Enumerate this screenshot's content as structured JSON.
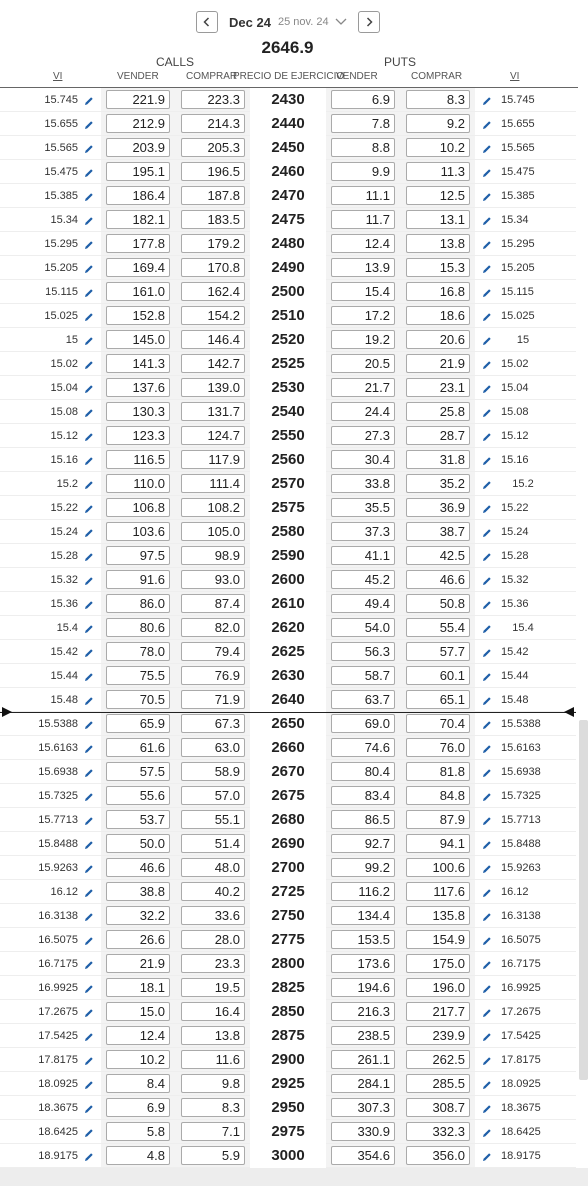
{
  "header": {
    "expiry_label": "Dec 24",
    "expiry_date": "25 nov. 24",
    "underlying_price": "2646.9",
    "calls_label": "CALLS",
    "puts_label": "PUTS",
    "columns": {
      "call_vi": "VI",
      "call_sell": "VENDER",
      "call_buy": "COMPRAR",
      "strike": "PRECIO DE EJERCICIO",
      "put_sell": "VENDER",
      "put_buy": "COMPRAR",
      "put_vi": "VI"
    }
  },
  "colors": {
    "accent": "#1f5fa8",
    "shade": "#f3f3f3",
    "atm_line": "#222222"
  },
  "icons": {
    "prev": "chevron-left-icon",
    "next": "chevron-right-icon",
    "dropdown": "chevron-down-icon",
    "edit": "pencil-icon"
  },
  "atm_after_index": 25,
  "rows": [
    {
      "call_vi": "15.745",
      "call_sell": "221.9",
      "call_buy": "223.3",
      "strike": "2430",
      "put_sell": "6.9",
      "put_buy": "8.3",
      "put_vi": "15.745"
    },
    {
      "call_vi": "15.655",
      "call_sell": "212.9",
      "call_buy": "214.3",
      "strike": "2440",
      "put_sell": "7.8",
      "put_buy": "9.2",
      "put_vi": "15.655"
    },
    {
      "call_vi": "15.565",
      "call_sell": "203.9",
      "call_buy": "205.3",
      "strike": "2450",
      "put_sell": "8.8",
      "put_buy": "10.2",
      "put_vi": "15.565"
    },
    {
      "call_vi": "15.475",
      "call_sell": "195.1",
      "call_buy": "196.5",
      "strike": "2460",
      "put_sell": "9.9",
      "put_buy": "11.3",
      "put_vi": "15.475"
    },
    {
      "call_vi": "15.385",
      "call_sell": "186.4",
      "call_buy": "187.8",
      "strike": "2470",
      "put_sell": "11.1",
      "put_buy": "12.5",
      "put_vi": "15.385"
    },
    {
      "call_vi": "15.34",
      "call_sell": "182.1",
      "call_buy": "183.5",
      "strike": "2475",
      "put_sell": "11.7",
      "put_buy": "13.1",
      "put_vi": "15.34"
    },
    {
      "call_vi": "15.295",
      "call_sell": "177.8",
      "call_buy": "179.2",
      "strike": "2480",
      "put_sell": "12.4",
      "put_buy": "13.8",
      "put_vi": "15.295"
    },
    {
      "call_vi": "15.205",
      "call_sell": "169.4",
      "call_buy": "170.8",
      "strike": "2490",
      "put_sell": "13.9",
      "put_buy": "15.3",
      "put_vi": "15.205"
    },
    {
      "call_vi": "15.115",
      "call_sell": "161.0",
      "call_buy": "162.4",
      "strike": "2500",
      "put_sell": "15.4",
      "put_buy": "16.8",
      "put_vi": "15.115"
    },
    {
      "call_vi": "15.025",
      "call_sell": "152.8",
      "call_buy": "154.2",
      "strike": "2510",
      "put_sell": "17.2",
      "put_buy": "18.6",
      "put_vi": "15.025"
    },
    {
      "call_vi": "15",
      "call_sell": "145.0",
      "call_buy": "146.4",
      "strike": "2520",
      "put_sell": "19.2",
      "put_buy": "20.6",
      "put_vi": "15"
    },
    {
      "call_vi": "15.02",
      "call_sell": "141.3",
      "call_buy": "142.7",
      "strike": "2525",
      "put_sell": "20.5",
      "put_buy": "21.9",
      "put_vi": "15.02"
    },
    {
      "call_vi": "15.04",
      "call_sell": "137.6",
      "call_buy": "139.0",
      "strike": "2530",
      "put_sell": "21.7",
      "put_buy": "23.1",
      "put_vi": "15.04"
    },
    {
      "call_vi": "15.08",
      "call_sell": "130.3",
      "call_buy": "131.7",
      "strike": "2540",
      "put_sell": "24.4",
      "put_buy": "25.8",
      "put_vi": "15.08"
    },
    {
      "call_vi": "15.12",
      "call_sell": "123.3",
      "call_buy": "124.7",
      "strike": "2550",
      "put_sell": "27.3",
      "put_buy": "28.7",
      "put_vi": "15.12"
    },
    {
      "call_vi": "15.16",
      "call_sell": "116.5",
      "call_buy": "117.9",
      "strike": "2560",
      "put_sell": "30.4",
      "put_buy": "31.8",
      "put_vi": "15.16"
    },
    {
      "call_vi": "15.2",
      "call_sell": "110.0",
      "call_buy": "111.4",
      "strike": "2570",
      "put_sell": "33.8",
      "put_buy": "35.2",
      "put_vi": "15.2"
    },
    {
      "call_vi": "15.22",
      "call_sell": "106.8",
      "call_buy": "108.2",
      "strike": "2575",
      "put_sell": "35.5",
      "put_buy": "36.9",
      "put_vi": "15.22"
    },
    {
      "call_vi": "15.24",
      "call_sell": "103.6",
      "call_buy": "105.0",
      "strike": "2580",
      "put_sell": "37.3",
      "put_buy": "38.7",
      "put_vi": "15.24"
    },
    {
      "call_vi": "15.28",
      "call_sell": "97.5",
      "call_buy": "98.9",
      "strike": "2590",
      "put_sell": "41.1",
      "put_buy": "42.5",
      "put_vi": "15.28"
    },
    {
      "call_vi": "15.32",
      "call_sell": "91.6",
      "call_buy": "93.0",
      "strike": "2600",
      "put_sell": "45.2",
      "put_buy": "46.6",
      "put_vi": "15.32"
    },
    {
      "call_vi": "15.36",
      "call_sell": "86.0",
      "call_buy": "87.4",
      "strike": "2610",
      "put_sell": "49.4",
      "put_buy": "50.8",
      "put_vi": "15.36"
    },
    {
      "call_vi": "15.4",
      "call_sell": "80.6",
      "call_buy": "82.0",
      "strike": "2620",
      "put_sell": "54.0",
      "put_buy": "55.4",
      "put_vi": "15.4"
    },
    {
      "call_vi": "15.42",
      "call_sell": "78.0",
      "call_buy": "79.4",
      "strike": "2625",
      "put_sell": "56.3",
      "put_buy": "57.7",
      "put_vi": "15.42"
    },
    {
      "call_vi": "15.44",
      "call_sell": "75.5",
      "call_buy": "76.9",
      "strike": "2630",
      "put_sell": "58.7",
      "put_buy": "60.1",
      "put_vi": "15.44"
    },
    {
      "call_vi": "15.48",
      "call_sell": "70.5",
      "call_buy": "71.9",
      "strike": "2640",
      "put_sell": "63.7",
      "put_buy": "65.1",
      "put_vi": "15.48"
    },
    {
      "call_vi": "15.5388",
      "call_sell": "65.9",
      "call_buy": "67.3",
      "strike": "2650",
      "put_sell": "69.0",
      "put_buy": "70.4",
      "put_vi": "15.5388"
    },
    {
      "call_vi": "15.6163",
      "call_sell": "61.6",
      "call_buy": "63.0",
      "strike": "2660",
      "put_sell": "74.6",
      "put_buy": "76.0",
      "put_vi": "15.6163"
    },
    {
      "call_vi": "15.6938",
      "call_sell": "57.5",
      "call_buy": "58.9",
      "strike": "2670",
      "put_sell": "80.4",
      "put_buy": "81.8",
      "put_vi": "15.6938"
    },
    {
      "call_vi": "15.7325",
      "call_sell": "55.6",
      "call_buy": "57.0",
      "strike": "2675",
      "put_sell": "83.4",
      "put_buy": "84.8",
      "put_vi": "15.7325"
    },
    {
      "call_vi": "15.7713",
      "call_sell": "53.7",
      "call_buy": "55.1",
      "strike": "2680",
      "put_sell": "86.5",
      "put_buy": "87.9",
      "put_vi": "15.7713"
    },
    {
      "call_vi": "15.8488",
      "call_sell": "50.0",
      "call_buy": "51.4",
      "strike": "2690",
      "put_sell": "92.7",
      "put_buy": "94.1",
      "put_vi": "15.8488"
    },
    {
      "call_vi": "15.9263",
      "call_sell": "46.6",
      "call_buy": "48.0",
      "strike": "2700",
      "put_sell": "99.2",
      "put_buy": "100.6",
      "put_vi": "15.9263"
    },
    {
      "call_vi": "16.12",
      "call_sell": "38.8",
      "call_buy": "40.2",
      "strike": "2725",
      "put_sell": "116.2",
      "put_buy": "117.6",
      "put_vi": "16.12"
    },
    {
      "call_vi": "16.3138",
      "call_sell": "32.2",
      "call_buy": "33.6",
      "strike": "2750",
      "put_sell": "134.4",
      "put_buy": "135.8",
      "put_vi": "16.3138"
    },
    {
      "call_vi": "16.5075",
      "call_sell": "26.6",
      "call_buy": "28.0",
      "strike": "2775",
      "put_sell": "153.5",
      "put_buy": "154.9",
      "put_vi": "16.5075"
    },
    {
      "call_vi": "16.7175",
      "call_sell": "21.9",
      "call_buy": "23.3",
      "strike": "2800",
      "put_sell": "173.6",
      "put_buy": "175.0",
      "put_vi": "16.7175"
    },
    {
      "call_vi": "16.9925",
      "call_sell": "18.1",
      "call_buy": "19.5",
      "strike": "2825",
      "put_sell": "194.6",
      "put_buy": "196.0",
      "put_vi": "16.9925"
    },
    {
      "call_vi": "17.2675",
      "call_sell": "15.0",
      "call_buy": "16.4",
      "strike": "2850",
      "put_sell": "216.3",
      "put_buy": "217.7",
      "put_vi": "17.2675"
    },
    {
      "call_vi": "17.5425",
      "call_sell": "12.4",
      "call_buy": "13.8",
      "strike": "2875",
      "put_sell": "238.5",
      "put_buy": "239.9",
      "put_vi": "17.5425"
    },
    {
      "call_vi": "17.8175",
      "call_sell": "10.2",
      "call_buy": "11.6",
      "strike": "2900",
      "put_sell": "261.1",
      "put_buy": "262.5",
      "put_vi": "17.8175"
    },
    {
      "call_vi": "18.0925",
      "call_sell": "8.4",
      "call_buy": "9.8",
      "strike": "2925",
      "put_sell": "284.1",
      "put_buy": "285.5",
      "put_vi": "18.0925"
    },
    {
      "call_vi": "18.3675",
      "call_sell": "6.9",
      "call_buy": "8.3",
      "strike": "2950",
      "put_sell": "307.3",
      "put_buy": "308.7",
      "put_vi": "18.3675"
    },
    {
      "call_vi": "18.6425",
      "call_sell": "5.8",
      "call_buy": "7.1",
      "strike": "2975",
      "put_sell": "330.9",
      "put_buy": "332.3",
      "put_vi": "18.6425"
    },
    {
      "call_vi": "18.9175",
      "call_sell": "4.8",
      "call_buy": "5.9",
      "strike": "3000",
      "put_sell": "354.6",
      "put_buy": "356.0",
      "put_vi": "18.9175"
    }
  ]
}
